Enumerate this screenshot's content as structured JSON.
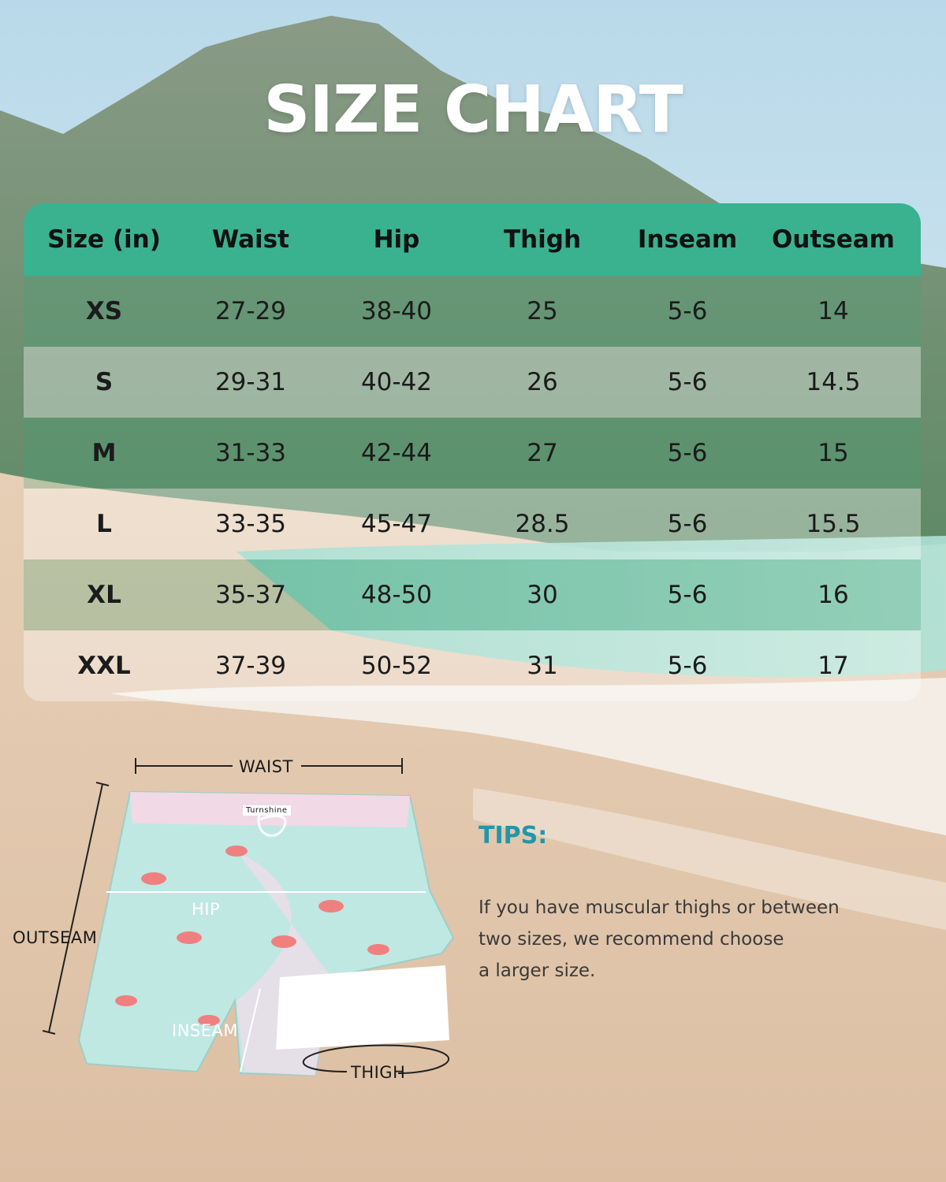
{
  "title": "SIZE CHART",
  "table": {
    "headers": [
      "Size (in)",
      "Waist",
      "Hip",
      "Thigh",
      "Inseam",
      "Outseam"
    ],
    "rows": [
      [
        "XS",
        "27-29",
        "38-40",
        "25",
        "5-6",
        "14"
      ],
      [
        "S",
        "29-31",
        "40-42",
        "26",
        "5-6",
        "14.5"
      ],
      [
        "M",
        "31-33",
        "42-44",
        "27",
        "5-6",
        "15"
      ],
      [
        "L",
        "33-35",
        "45-47",
        "28.5",
        "5-6",
        "15.5"
      ],
      [
        "XL",
        "35-37",
        "48-50",
        "30",
        "5-6",
        "16"
      ],
      [
        "XXL",
        "37-39",
        "50-52",
        "31",
        "5-6",
        "17"
      ]
    ]
  },
  "diagram": {
    "waist_label": "WAIST",
    "hip_label": "HIP",
    "outseam_label": "OUTSEAM",
    "inseam_label": "INSEAM",
    "thigh_label": "THIGH",
    "brand_tag": "Turnshine"
  },
  "tips": {
    "title": "TIPS:",
    "lines": [
      "If you have muscular thighs or between",
      "two sizes, we recommend choose",
      "a larger size."
    ]
  },
  "colors": {
    "header_green": "#3ab28f",
    "tips_teal": "#1f97aa"
  }
}
